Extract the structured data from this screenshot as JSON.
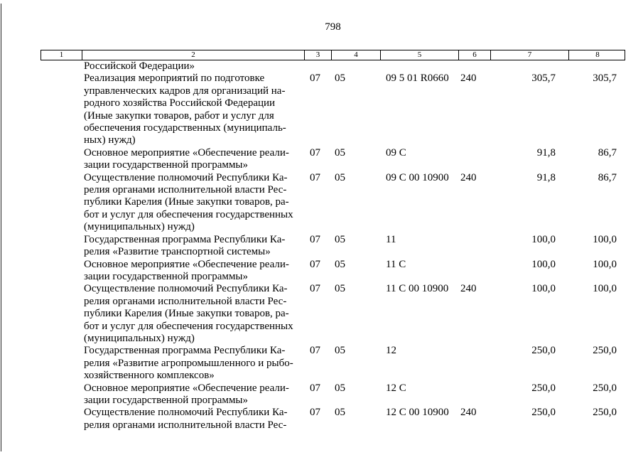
{
  "page": {
    "number": "798"
  },
  "table": {
    "column_headers": [
      "1",
      "2",
      "3",
      "4",
      "5",
      "6",
      "7",
      "8"
    ],
    "rows": [
      {
        "name": "Российской Федерации»",
        "col3": "",
        "col4": "",
        "col5": "",
        "col6": "",
        "col7": "",
        "col8": ""
      },
      {
        "name": "Реализация мероприятий по подготовке\nуправленческих кадров для организаций на-\nродного хозяйства Российской Федерации\n(Иные закупки товаров, работ и услуг для\nобеспечения государственных (муниципаль-\nных) нужд)",
        "col3": "07",
        "col4": "05",
        "col5": "09 5 01 R0660",
        "col6": "240",
        "col7": "305,7",
        "col8": "305,7"
      },
      {
        "name": "Основное мероприятие «Обеспечение реали-\nзации государственной программы»",
        "col3": "07",
        "col4": "05",
        "col5": "09 C",
        "col6": "",
        "col7": "91,8",
        "col8": "86,7"
      },
      {
        "name": "Осуществление полномочий Республики Ка-\nрелия органами исполнительной власти Рес-\nпублики Карелия (Иные закупки товаров, ра-\nбот и услуг для обеспечения государственных\n(муниципальных) нужд)",
        "col3": "07",
        "col4": "05",
        "col5": "09 C 00 10900",
        "col6": "240",
        "col7": "91,8",
        "col8": "86,7"
      },
      {
        "name": "Государственная программа Республики Ка-\nрелия «Развитие транспортной системы»",
        "col3": "07",
        "col4": "05",
        "col5": "11",
        "col6": "",
        "col7": "100,0",
        "col8": "100,0"
      },
      {
        "name": "Основное мероприятие «Обеспечение реали-\nзации государственной программы»",
        "col3": "07",
        "col4": "05",
        "col5": "11 C",
        "col6": "",
        "col7": "100,0",
        "col8": "100,0"
      },
      {
        "name": "Осуществление полномочий Республики Ка-\nрелия органами исполнительной власти Рес-\nпублики Карелия (Иные закупки товаров, ра-\nбот и услуг для обеспечения государственных\n(муниципальных) нужд)",
        "col3": "07",
        "col4": "05",
        "col5": "11 C 00 10900",
        "col6": "240",
        "col7": "100,0",
        "col8": "100,0"
      },
      {
        "name": "Государственная программа Республики Ка-\nрелия «Развитие агропромышленного и рыбо-\nхозяйственного комплексов»",
        "col3": "07",
        "col4": "05",
        "col5": "12",
        "col6": "",
        "col7": "250,0",
        "col8": "250,0"
      },
      {
        "name": "Основное мероприятие «Обеспечение реали-\nзации государственной программы»",
        "col3": "07",
        "col4": "05",
        "col5": "12 C",
        "col6": "",
        "col7": "250,0",
        "col8": "250,0"
      },
      {
        "name": "Осуществление полномочий Республики Ка-\nрелия органами исполнительной власти Рес-",
        "col3": "07",
        "col4": "05",
        "col5": "12 C 00 10900",
        "col6": "240",
        "col7": "250,0",
        "col8": "250,0"
      }
    ]
  }
}
